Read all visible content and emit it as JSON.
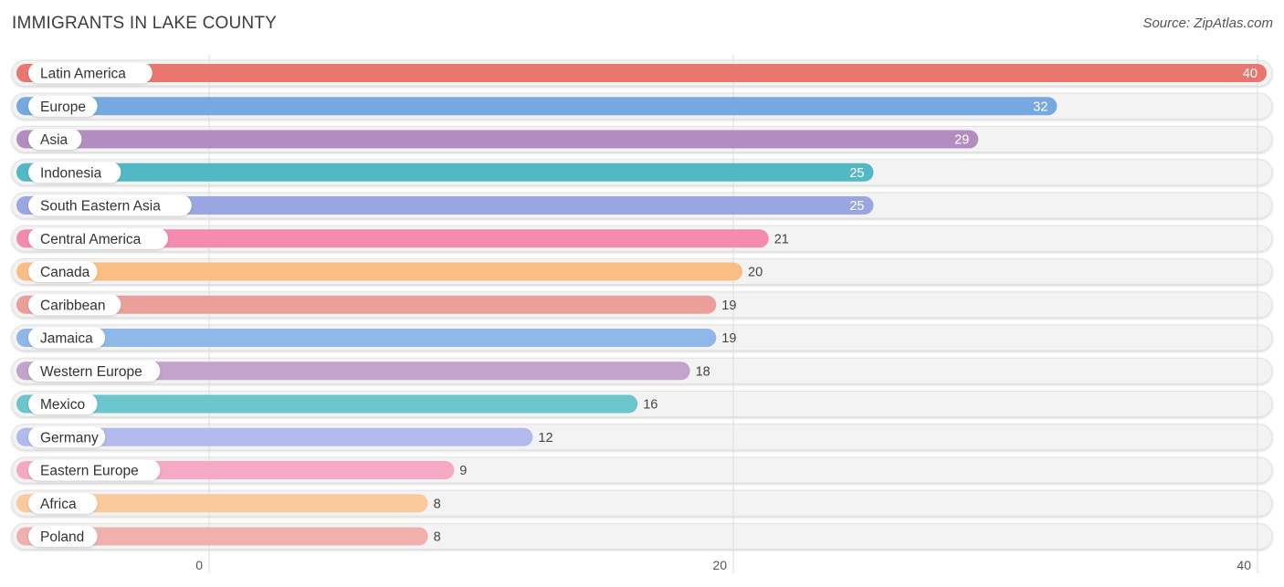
{
  "header": {
    "title": "IMMIGRANTS IN LAKE COUNTY",
    "source": "Source: ZipAtlas.com"
  },
  "chart_data": {
    "type": "bar",
    "orientation": "horizontal",
    "title": "IMMIGRANTS IN LAKE COUNTY",
    "xlabel": "",
    "ylabel": "",
    "xlim": [
      0,
      40
    ],
    "xticks": [
      0,
      20,
      40
    ],
    "grid": true,
    "categories": [
      "Latin America",
      "Europe",
      "Asia",
      "Indonesia",
      "South Eastern Asia",
      "Central America",
      "Canada",
      "Caribbean",
      "Jamaica",
      "Western Europe",
      "Mexico",
      "Germany",
      "Eastern Europe",
      "Africa",
      "Poland"
    ],
    "values": [
      40,
      32,
      29,
      25,
      25,
      21,
      20,
      19,
      19,
      18,
      16,
      12,
      9,
      8,
      8
    ],
    "colors": [
      "#e8776f",
      "#77a8e0",
      "#b48dc0",
      "#52b8c3",
      "#9aa6e2",
      "#f48aae",
      "#f9be84",
      "#eb9f9a",
      "#8fb7e8",
      "#c3a2cc",
      "#6cc4cc",
      "#b2b9ec",
      "#f6a9c4",
      "#fac99c",
      "#f0b0ad"
    ]
  }
}
